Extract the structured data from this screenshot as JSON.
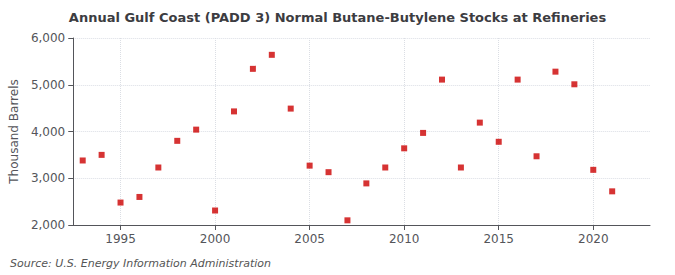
{
  "chart_data": {
    "type": "scatter",
    "title": "Annual Gulf Coast (PADD 3) Normal Butane-Butylene Stocks at Refineries",
    "ylabel": "Thousand Barrels",
    "annotation": "Source: U.S. Energy Information Administration",
    "x": [
      1993,
      1994,
      1995,
      1996,
      1997,
      1998,
      1999,
      2000,
      2001,
      2002,
      2003,
      2004,
      2005,
      2006,
      2007,
      2008,
      2009,
      2010,
      2011,
      2012,
      2013,
      2014,
      2015,
      2016,
      2017,
      2018,
      2019,
      2020,
      2021
    ],
    "values": [
      3380,
      3500,
      2480,
      2600,
      3230,
      3800,
      4040,
      2310,
      4430,
      5340,
      5640,
      4490,
      3270,
      3130,
      2100,
      2890,
      3230,
      3640,
      3970,
      5110,
      3230,
      4190,
      3780,
      5110,
      3470,
      5280,
      5010,
      3180,
      2720
    ],
    "color": "#cc0000",
    "marker": "square",
    "xlim": [
      1992.5,
      2023
    ],
    "xticks": [
      1995,
      2000,
      2005,
      2010,
      2015,
      2020
    ],
    "ylim": [
      2000,
      6000
    ],
    "yticks": [
      {
        "value": 2000,
        "label": "2,000"
      },
      {
        "value": 3000,
        "label": "3,000"
      },
      {
        "value": 4000,
        "label": "4,000"
      },
      {
        "value": 5000,
        "label": "5,000"
      },
      {
        "value": 6000,
        "label": "6,000"
      }
    ],
    "grid": true
  }
}
